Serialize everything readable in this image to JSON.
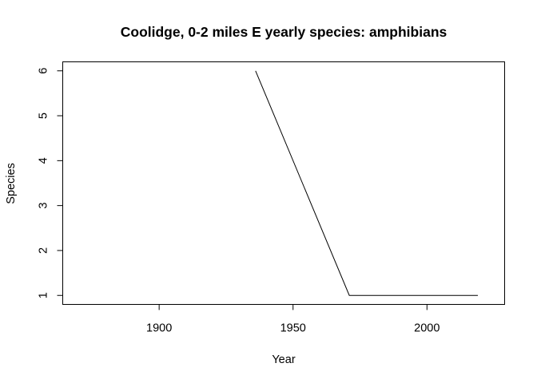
{
  "chart_data": {
    "type": "line",
    "title": "Coolidge, 0-2 miles E yearly species: amphibians",
    "xlabel": "Year",
    "ylabel": "Species",
    "xlim": [
      1864,
      2029
    ],
    "ylim": [
      0.8,
      6.2
    ],
    "xticks": [
      1900,
      1950,
      2000
    ],
    "yticks": [
      1,
      2,
      3,
      4,
      5,
      6
    ],
    "grid": false,
    "legend": "none",
    "series": [
      {
        "x": [
          1936,
          1971,
          2019
        ],
        "y": [
          6,
          1,
          1
        ],
        "color": "#000000"
      }
    ]
  }
}
